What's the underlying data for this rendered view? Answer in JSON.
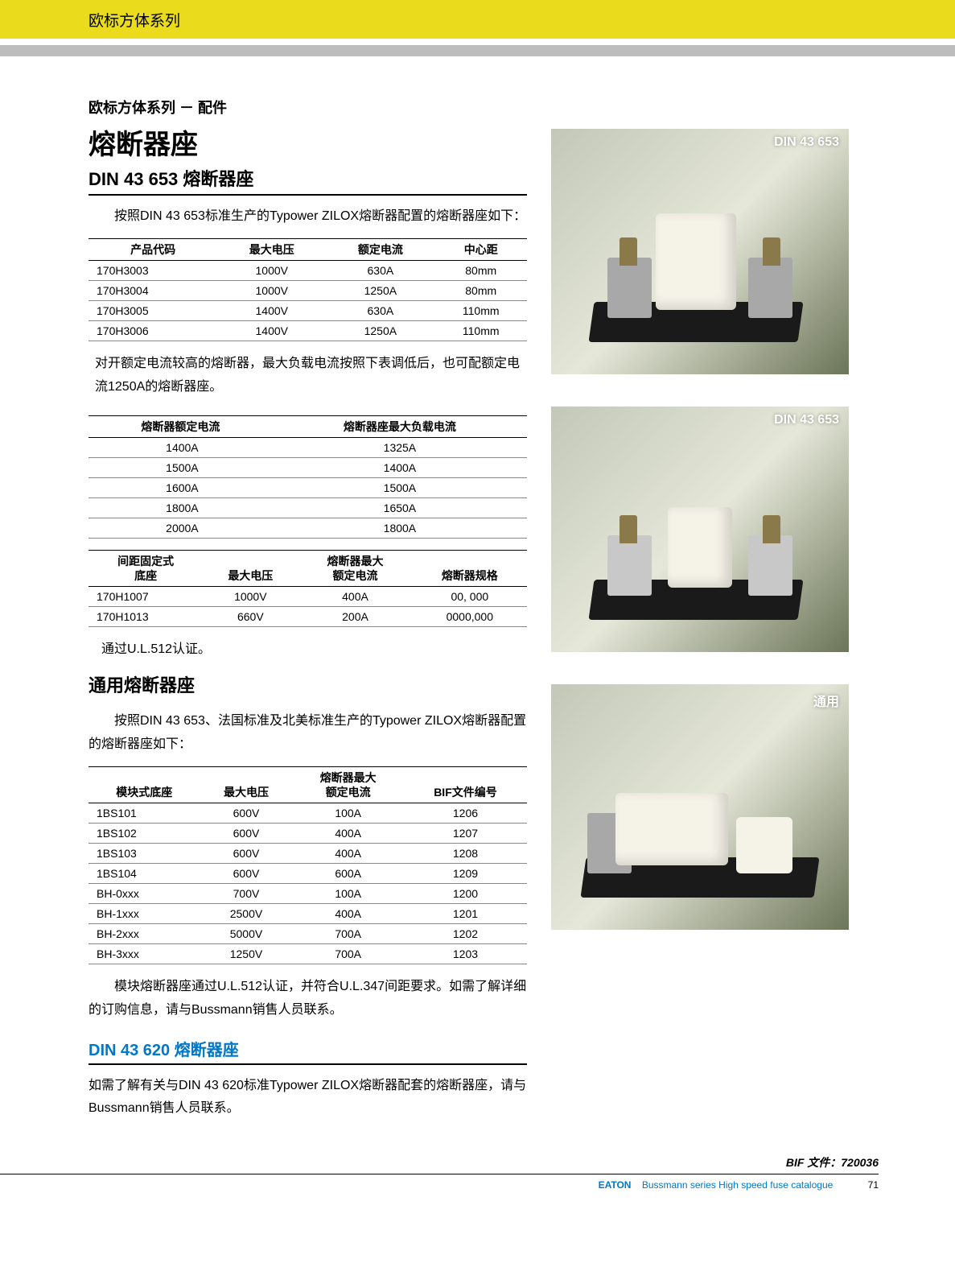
{
  "banner": {
    "text": "欧标方体系列"
  },
  "header": {
    "subtitle": "欧标方体系列 － 配件",
    "maintitle": "熔断器座"
  },
  "section1": {
    "heading": "DIN 43 653 熔断器座",
    "intro": "按照DIN 43 653标准生产的Typower ZILOX熔断器配置的熔断器座如下：",
    "table1": {
      "headers": [
        "产品代码",
        "最大电压",
        "额定电流",
        "中心距"
      ],
      "rows": [
        [
          "170H3003",
          "1000V",
          "630A",
          "80mm"
        ],
        [
          "170H3004",
          "1000V",
          "1250A",
          "80mm"
        ],
        [
          "170H3005",
          "1400V",
          "630A",
          "110mm"
        ],
        [
          "170H3006",
          "1400V",
          "1250A",
          "110mm"
        ]
      ]
    },
    "note1": "对开额定电流较高的熔断器，最大负载电流按照下表调低后，也可配额定电流1250A的熔断器座。",
    "table2": {
      "headers": [
        "熔断器额定电流",
        "熔断器座最大负载电流"
      ],
      "rows": [
        [
          "1400A",
          "1325A"
        ],
        [
          "1500A",
          "1400A"
        ],
        [
          "1600A",
          "1500A"
        ],
        [
          "1800A",
          "1650A"
        ],
        [
          "2000A",
          "1800A"
        ]
      ]
    },
    "table3": {
      "headers": [
        "间距固定式\n底座",
        "最大电压",
        "熔断器最大\n额定电流",
        "熔断器规格"
      ],
      "rows": [
        [
          "170H1007",
          "1000V",
          "400A",
          "00, 000"
        ],
        [
          "170H1013",
          "660V",
          "200A",
          "0000,000"
        ]
      ]
    },
    "note2": "通过U.L.512认证。"
  },
  "section2": {
    "heading": "通用熔断器座",
    "intro": "按照DIN 43 653、法国标准及北美标准生产的Typower ZILOX熔断器配置的熔断器座如下：",
    "table4": {
      "headers": [
        "模块式底座",
        "最大电压",
        "熔断器最大\n额定电流",
        "BIF文件编号"
      ],
      "rows": [
        [
          "1BS101",
          "600V",
          "100A",
          "1206"
        ],
        [
          "1BS102",
          "600V",
          "400A",
          "1207"
        ],
        [
          "1BS103",
          "600V",
          "400A",
          "1208"
        ],
        [
          "1BS104",
          "600V",
          "600A",
          "1209"
        ],
        [
          "BH-0xxx",
          "700V",
          "100A",
          "1200"
        ],
        [
          "BH-1xxx",
          "2500V",
          "400A",
          "1201"
        ],
        [
          "BH-2xxx",
          "5000V",
          "700A",
          "1202"
        ],
        [
          "BH-3xxx",
          "1250V",
          "700A",
          "1203"
        ]
      ]
    },
    "note": "模块熔断器座通过U.L.512认证，并符合U.L.347间距要求。如需了解详细的订购信息，请与Bussmann销售人员联系。"
  },
  "section3": {
    "heading": "DIN  43  620 熔断器座",
    "text": "如需了解有关与DIN 43 620标准Typower ZILOX熔断器配套的熔断器座，请与Bussmann销售人员联系。"
  },
  "photos": {
    "label1": "DIN 43 653",
    "label2": "DIN 43 653",
    "label3": "通用"
  },
  "footer": {
    "bif": "BIF 文件：720036",
    "brand": "EATON",
    "series": "Bussmann series High speed fuse catalogue",
    "page": "71"
  },
  "colors": {
    "banner_bg": "#eadb1d",
    "gray_bar": "#bdbdbd",
    "blue_heading": "#0077c8",
    "text": "#000000",
    "table_border": "#888888"
  }
}
